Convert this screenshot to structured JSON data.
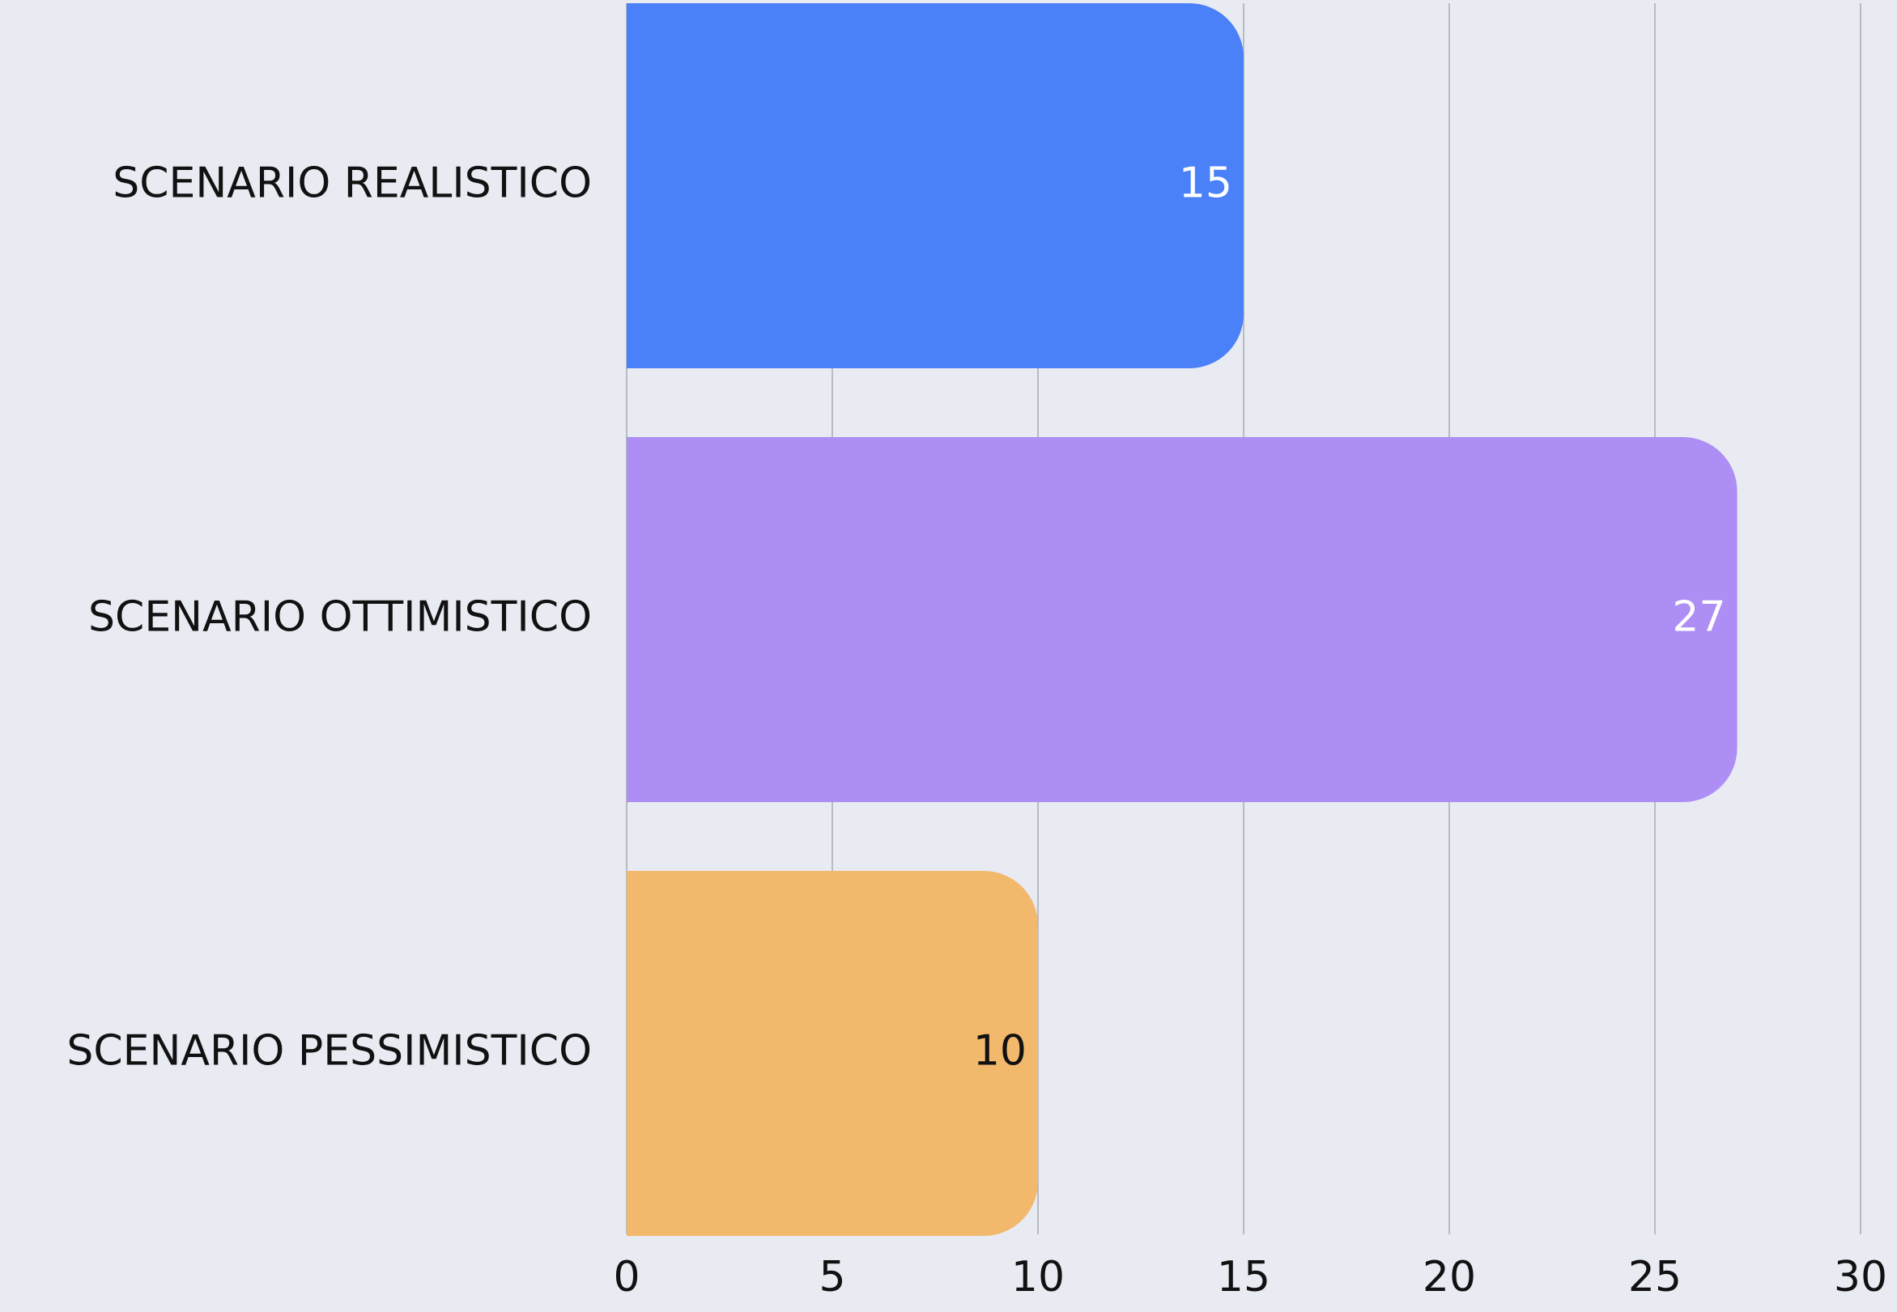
{
  "chart_data": {
    "type": "barh",
    "categories": [
      "SCENARIO REALISTICO",
      "SCENARIO OTTIMISTICO",
      "SCENARIO PESSIMISTICO"
    ],
    "values": [
      15,
      27,
      10
    ],
    "colors": [
      "#4a80f8",
      "#ad8ef5",
      "#f2b86c"
    ],
    "value_label_colors": [
      "#ffffff",
      "#ffffff",
      "#111111"
    ],
    "xlim": [
      0,
      30
    ],
    "xticks": [
      0,
      5,
      10,
      15,
      20,
      25,
      30
    ],
    "grid": true
  }
}
